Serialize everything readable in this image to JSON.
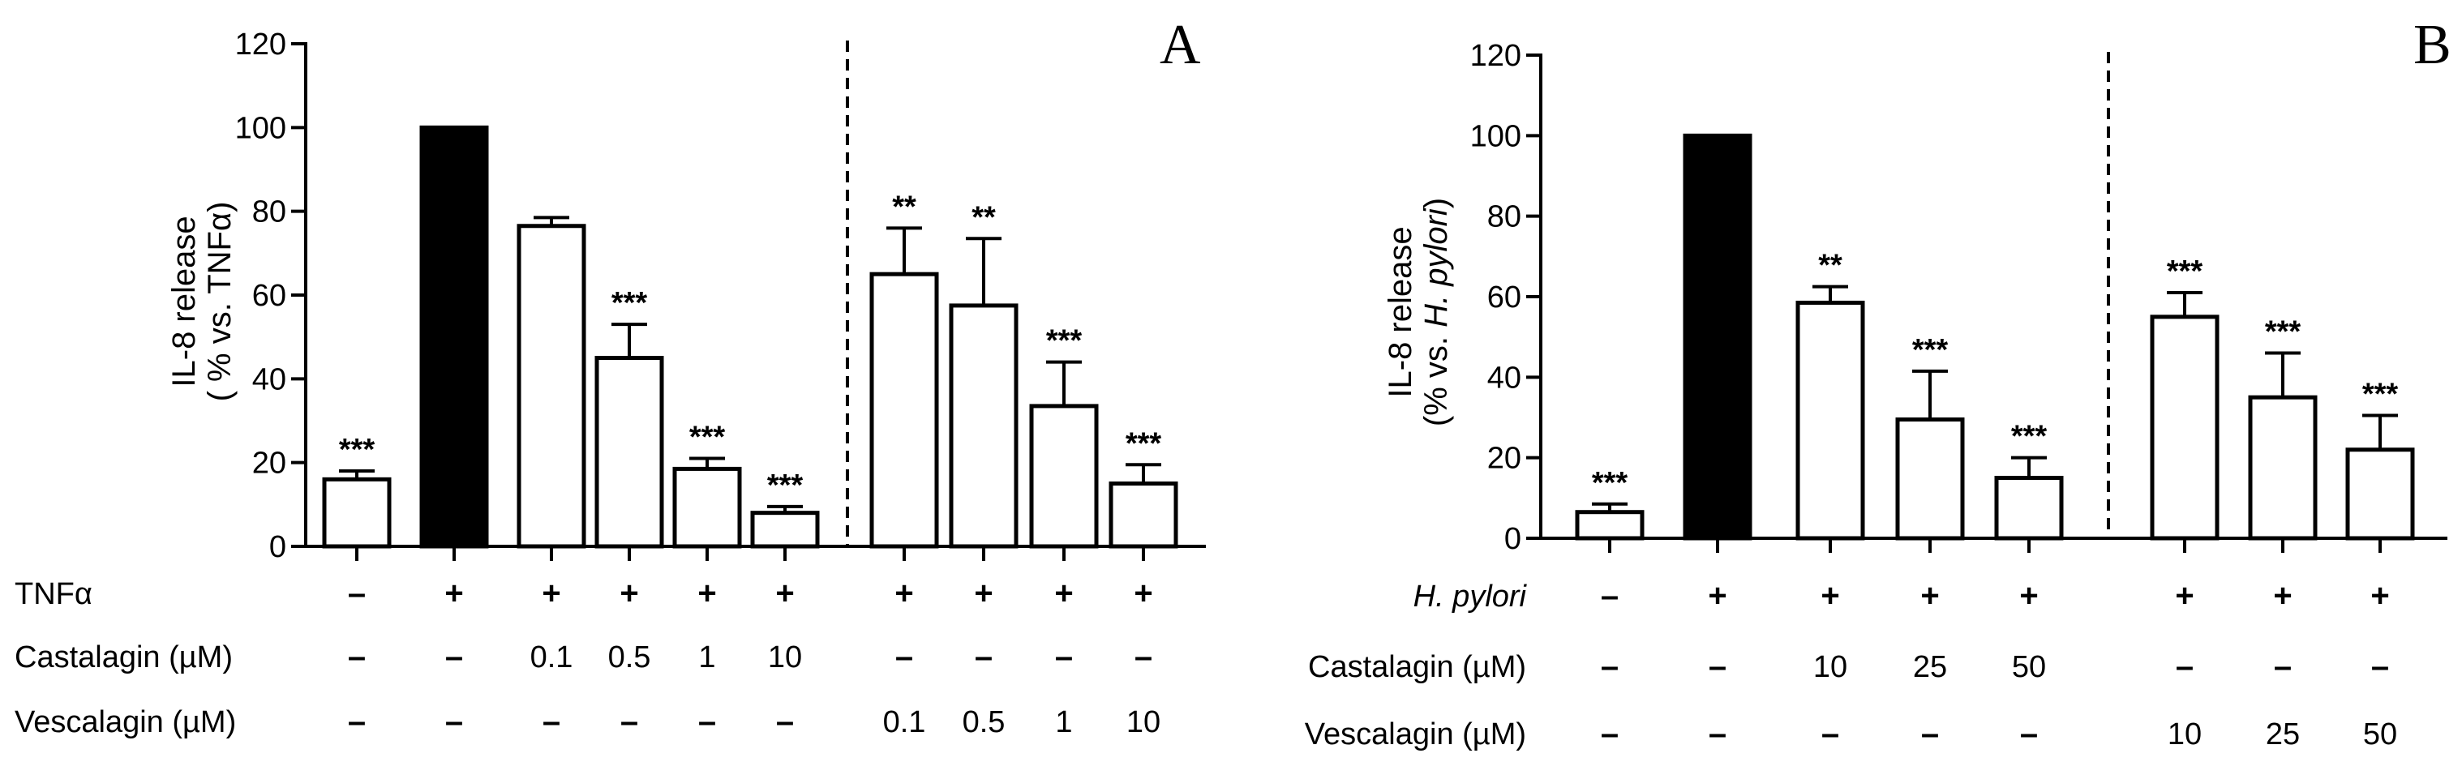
{
  "chart_data": [
    {
      "type": "bar",
      "panel_label": "A",
      "ylabel_line1": "IL-8 release",
      "ylabel_line2": "( % vs. TNFα)",
      "ylim": [
        0,
        120
      ],
      "yticks": [
        "0",
        "20",
        "40",
        "60",
        "80",
        "100",
        "120"
      ],
      "values": [
        16,
        100,
        76.5,
        45,
        18.5,
        8,
        65,
        57.5,
        33.5,
        15
      ],
      "errors": [
        2,
        0,
        2,
        8,
        2.5,
        1.5,
        11,
        16,
        10.5,
        4.5
      ],
      "fills": [
        "white",
        "black",
        "white",
        "white",
        "white",
        "white",
        "white",
        "white",
        "white",
        "white"
      ],
      "significance": [
        "***",
        "",
        "",
        "***",
        "***",
        "***",
        "**",
        "**",
        "***",
        "***"
      ],
      "separator_after_index": 5,
      "condition_rows": [
        {
          "label": "TNFα",
          "values": [
            "–",
            "+",
            "+",
            "+",
            "+",
            "+",
            "+",
            "+",
            "+",
            "+"
          ]
        },
        {
          "label": "Castalagin (µM)",
          "values": [
            "–",
            "–",
            "0.1",
            "0.5",
            "1",
            "10",
            "–",
            "–",
            "–",
            "–"
          ]
        },
        {
          "label": "Vescalagin (µM)",
          "values": [
            "–",
            "–",
            "–",
            "–",
            "–",
            "–",
            "0.1",
            "0.5",
            "1",
            "10"
          ]
        }
      ]
    },
    {
      "type": "bar",
      "panel_label": "B",
      "ylabel_line1": "IL-8 release",
      "ylabel_line2_prefix": "(% vs. ",
      "ylabel_line2_italic": "H. pylori",
      "ylabel_line2_suffix": ")",
      "ylim": [
        0,
        120
      ],
      "yticks": [
        "0",
        "20",
        "40",
        "60",
        "80",
        "100",
        "120"
      ],
      "values": [
        6.5,
        100,
        58.5,
        29.5,
        15,
        55,
        35,
        22
      ],
      "errors": [
        2,
        0,
        4,
        12,
        5,
        6,
        11,
        8.5
      ],
      "fills": [
        "white",
        "black",
        "white",
        "white",
        "white",
        "white",
        "white",
        "white"
      ],
      "significance": [
        "***",
        "",
        "**",
        "***",
        "***",
        "***",
        "***",
        "***"
      ],
      "separator_after_index": 4,
      "condition_rows": [
        {
          "label": "H. pylori",
          "italic": true,
          "values": [
            "–",
            "+",
            "+",
            "+",
            "+",
            "+",
            "+",
            "+"
          ]
        },
        {
          "label": "Castalagin (µM)",
          "values": [
            "–",
            "–",
            "10",
            "25",
            "50",
            "–",
            "–",
            "–"
          ]
        },
        {
          "label": "Vescalagin (µM)",
          "values": [
            "–",
            "–",
            "–",
            "–",
            "–",
            "10",
            "25",
            "50"
          ]
        }
      ]
    }
  ]
}
